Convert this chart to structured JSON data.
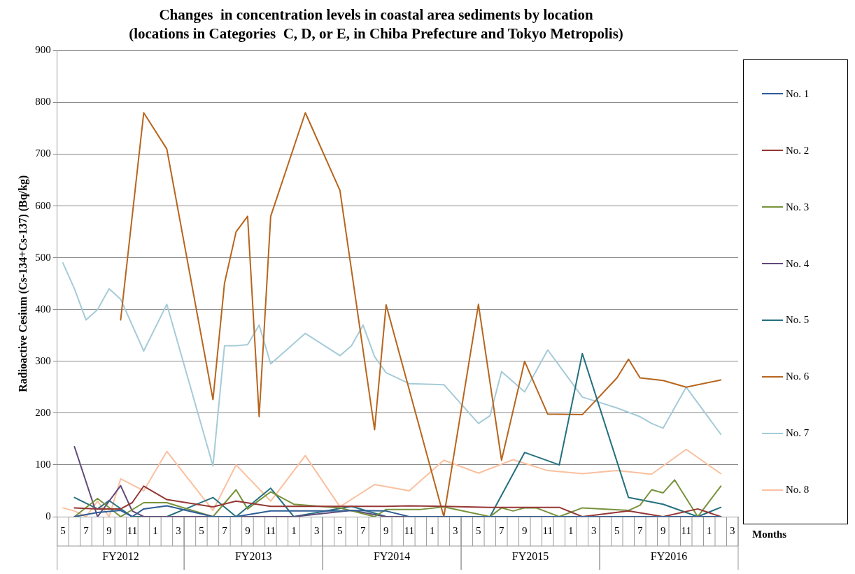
{
  "chart_data": {
    "type": "line",
    "title": "Changes  in concentration levels in coastal area sediments by location",
    "subtitle": "(locations in Categories  C, D, or E, in Chiba Prefecture and Tokyo Metropolis)",
    "xlabel": "Months",
    "ylabel": "Radioactive Cesium (Cs-134+Cs-137) (Bq/kg)",
    "annotations": [
      "FY2012",
      "FY2013",
      "FY2014",
      "FY2015",
      "FY2016"
    ],
    "categories": [
      "5",
      null,
      "7",
      null,
      "9",
      null,
      "11",
      null,
      "1",
      null,
      "3",
      null,
      "5",
      null,
      "7",
      null,
      "9",
      null,
      "11",
      null,
      "1",
      null,
      "3",
      null,
      "5",
      null,
      "7",
      null,
      "9",
      null,
      "11",
      null,
      "1",
      null,
      "3",
      null,
      "5",
      null,
      "7",
      null,
      "9",
      null,
      "11",
      null,
      "1",
      null,
      "3",
      null,
      "5",
      null,
      "7",
      null,
      "9",
      null,
      "11",
      null,
      "1",
      null,
      "3"
    ],
    "ylim": [
      0,
      900
    ],
    "yticks": [
      0,
      100,
      200,
      300,
      400,
      500,
      600,
      700,
      800,
      900
    ],
    "grid": "y",
    "legend": "right",
    "series": [
      {
        "name": "No. 1",
        "color": "#2f5d96",
        "values": [
          null,
          0,
          null,
          8,
          null,
          12,
          0,
          15,
          null,
          21,
          null,
          null,
          null,
          0,
          null,
          0,
          null,
          null,
          11,
          null,
          11,
          null,
          null,
          null,
          11,
          12,
          null,
          null,
          11,
          null,
          0,
          null,
          null,
          0,
          null,
          null,
          null,
          0,
          null,
          null,
          0,
          null,
          null,
          0,
          null,
          0,
          null,
          null,
          null,
          0,
          null,
          null,
          0,
          null,
          null,
          0,
          null,
          0,
          null
        ]
      },
      {
        "name": "No. 2",
        "color": "#953735",
        "values": [
          null,
          17,
          null,
          15,
          null,
          15,
          27,
          59,
          null,
          33,
          null,
          null,
          null,
          19,
          null,
          30,
          null,
          null,
          20,
          null,
          20,
          null,
          null,
          null,
          null,
          20,
          null,
          null,
          20,
          null,
          21,
          null,
          null,
          20,
          null,
          null,
          null,
          18,
          null,
          null,
          18,
          null,
          null,
          18,
          null,
          0,
          null,
          null,
          null,
          11,
          null,
          null,
          0,
          null,
          null,
          15,
          null,
          0,
          null
        ]
      },
      {
        "name": "No. 3",
        "color": "#77933c",
        "values": [
          null,
          0,
          null,
          35,
          null,
          0,
          null,
          27,
          null,
          27,
          null,
          null,
          null,
          0,
          null,
          52,
          15,
          null,
          48,
          null,
          24,
          null,
          null,
          null,
          17,
          null,
          null,
          0,
          14,
          null,
          null,
          14,
          null,
          19,
          null,
          null,
          null,
          0,
          17,
          11,
          17,
          17,
          null,
          0,
          null,
          17,
          null,
          null,
          null,
          12,
          22,
          52,
          46,
          71,
          null,
          0,
          null,
          59,
          null
        ]
      },
      {
        "name": "No. 4",
        "color": "#5f497a",
        "values": [
          null,
          135,
          null,
          0,
          null,
          60,
          11,
          0,
          null,
          0,
          null,
          null,
          null,
          0,
          null,
          0,
          null,
          null,
          0,
          null,
          0,
          null,
          null,
          null,
          null,
          12,
          null,
          null,
          0,
          null,
          null,
          null,
          null,
          0,
          null,
          null,
          null,
          0,
          null,
          null,
          0,
          null,
          null,
          0,
          null,
          0,
          null,
          null,
          null,
          0,
          null,
          null,
          0,
          null,
          null,
          0,
          null,
          0,
          null
        ]
      },
      {
        "name": "No. 5",
        "color": "#23707f",
        "values": [
          null,
          37,
          null,
          15,
          31,
          null,
          0,
          null,
          null,
          0,
          null,
          null,
          null,
          37,
          null,
          0,
          null,
          null,
          55,
          null,
          0,
          null,
          null,
          null,
          null,
          20,
          null,
          null,
          0,
          null,
          null,
          null,
          null,
          0,
          null,
          null,
          null,
          0,
          null,
          null,
          124,
          null,
          null,
          100,
          null,
          315,
          null,
          null,
          null,
          37,
          null,
          null,
          24,
          null,
          null,
          0,
          null,
          18,
          null
        ]
      },
      {
        "name": "No. 6",
        "color": "#b7651d",
        "values": [
          null,
          null,
          null,
          null,
          null,
          380,
          null,
          780,
          null,
          710,
          null,
          null,
          null,
          226,
          451,
          550,
          580,
          193,
          580,
          null,
          null,
          780,
          null,
          null,
          630,
          null,
          null,
          168,
          409,
          null,
          null,
          null,
          null,
          0,
          null,
          null,
          410,
          null,
          109,
          null,
          300,
          null,
          198,
          null,
          null,
          197,
          null,
          null,
          268,
          304,
          268,
          null,
          263,
          null,
          250,
          null,
          null,
          264,
          null
        ]
      },
      {
        "name": "No. 7",
        "color": "#a5cbd8",
        "values": [
          490,
          440,
          380,
          400,
          440,
          420,
          null,
          320,
          null,
          410,
          null,
          null,
          null,
          98,
          330,
          330,
          332,
          370,
          295,
          null,
          null,
          354,
          null,
          null,
          311,
          330,
          370,
          309,
          278,
          null,
          257,
          null,
          null,
          255,
          null,
          null,
          180,
          195,
          280,
          null,
          241,
          null,
          322,
          null,
          null,
          231,
          null,
          null,
          210,
          null,
          193,
          180,
          171,
          null,
          250,
          null,
          null,
          159,
          null
        ]
      },
      {
        "name": "No. 8",
        "color": "#fac09f",
        "values": [
          17,
          11,
          0,
          30,
          0,
          73,
          null,
          50,
          null,
          126,
          null,
          null,
          null,
          12,
          null,
          100,
          null,
          null,
          30,
          null,
          null,
          118,
          null,
          null,
          19,
          null,
          null,
          62,
          null,
          null,
          50,
          null,
          null,
          109,
          null,
          null,
          84,
          null,
          null,
          110,
          null,
          null,
          89,
          null,
          null,
          83,
          null,
          null,
          89,
          null,
          null,
          82,
          null,
          null,
          130,
          null,
          null,
          83,
          null
        ]
      }
    ]
  }
}
